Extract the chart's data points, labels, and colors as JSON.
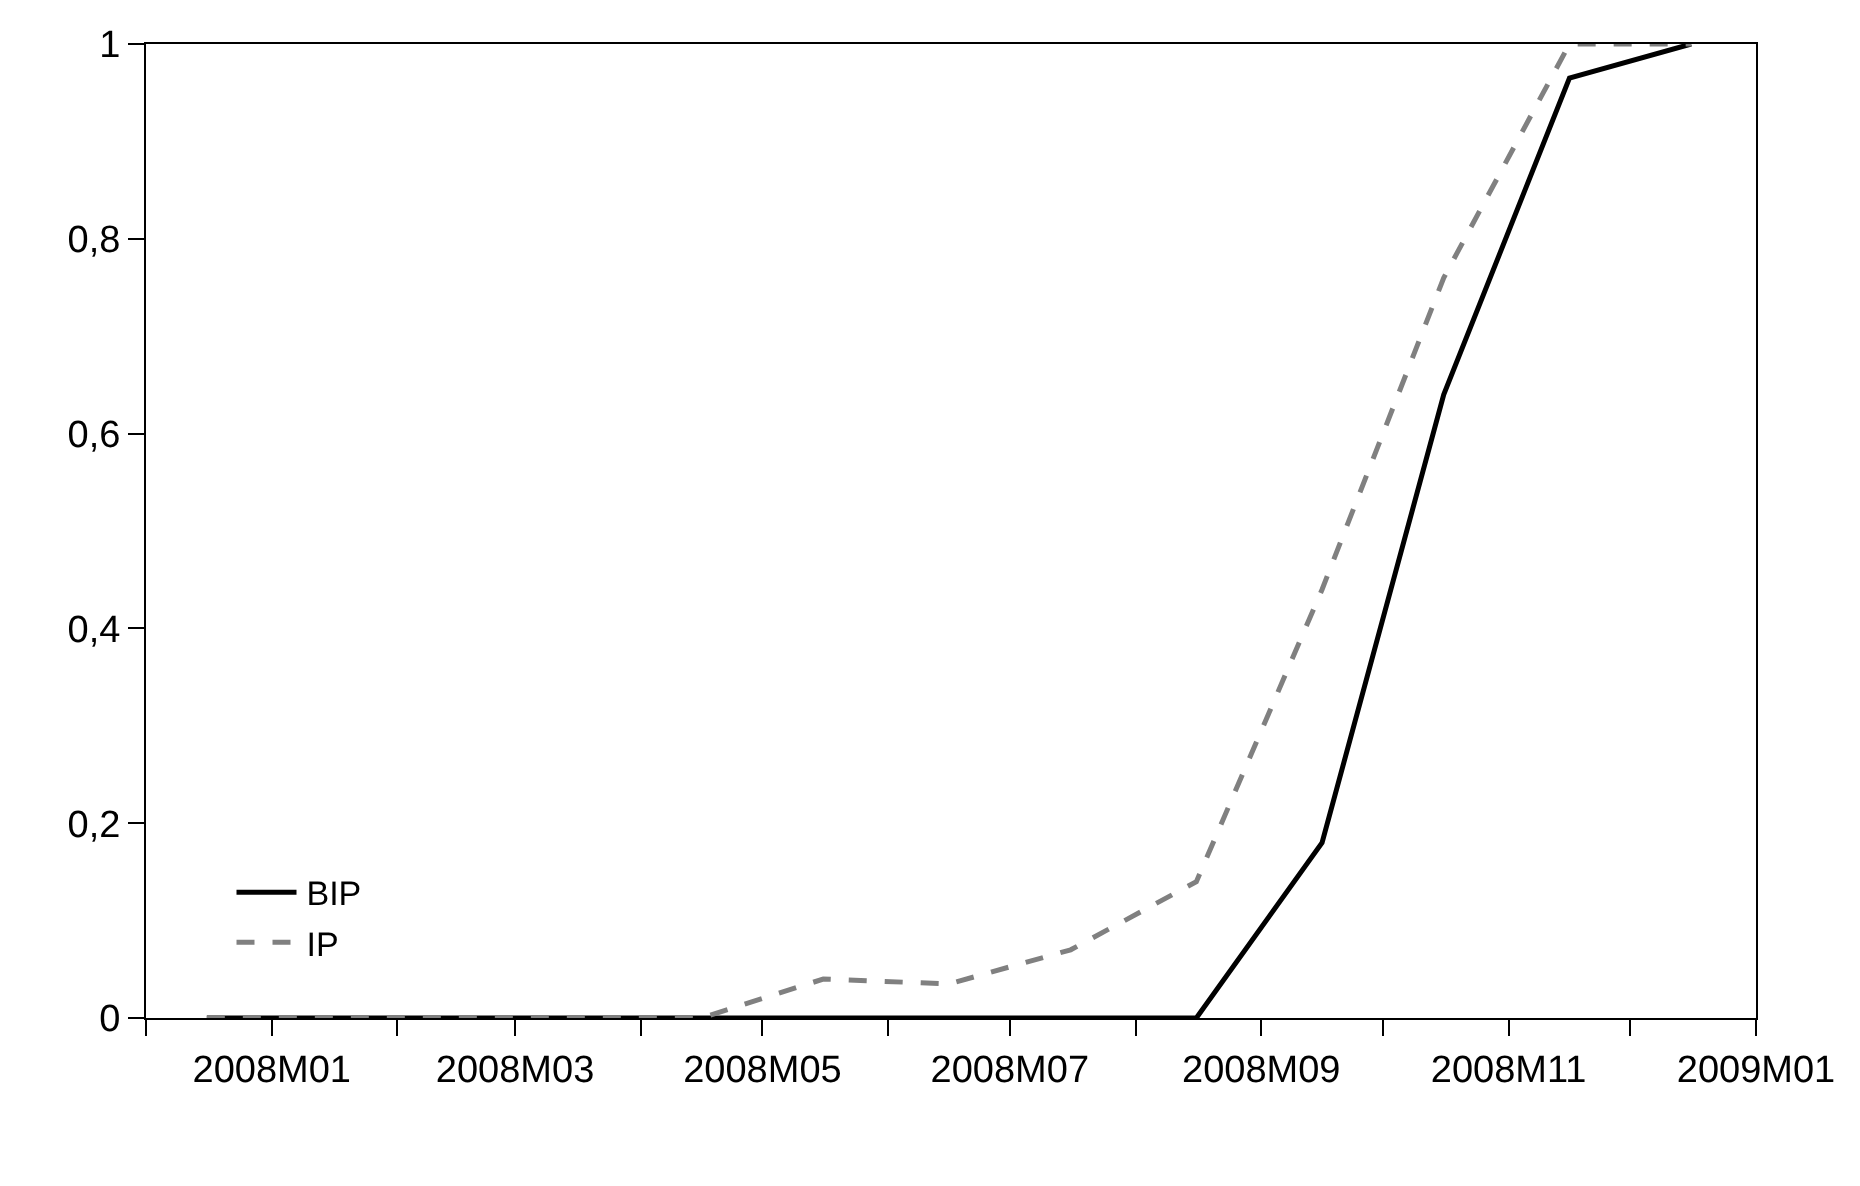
{
  "chart_data": {
    "type": "line",
    "x": [
      "2007-12-16",
      "2008-01-16",
      "2008-02-16",
      "2008-03-16",
      "2008-04-16",
      "2008-05-16",
      "2008-06-16",
      "2008-07-16",
      "2008-08-16",
      "2008-09-16",
      "2008-10-16",
      "2008-11-16",
      "2008-12-16"
    ],
    "series": [
      {
        "name": "BIP",
        "color": "#000000",
        "line_style": "solid",
        "values": [
          0,
          0,
          0,
          0,
          0,
          0,
          0,
          0,
          0,
          0.18,
          0.64,
          0.965,
          1
        ]
      },
      {
        "name": "IP",
        "color": "#808080",
        "line_style": "dashed",
        "values": [
          0,
          0,
          0,
          0,
          0,
          0.04,
          0.035,
          0.07,
          0.14,
          0.44,
          0.76,
          1,
          1
        ]
      }
    ],
    "xlim": [
      "2007-12-01",
      "2009-01-01"
    ],
    "xticks": [
      {
        "value": "2007-12-01",
        "label": null
      },
      {
        "value": "2008-01-01",
        "label": "2008M01"
      },
      {
        "value": "2008-02-01",
        "label": null
      },
      {
        "value": "2008-03-01",
        "label": "2008M03"
      },
      {
        "value": "2008-04-01",
        "label": null
      },
      {
        "value": "2008-05-01",
        "label": "2008M05"
      },
      {
        "value": "2008-06-01",
        "label": null
      },
      {
        "value": "2008-07-01",
        "label": "2008M07"
      },
      {
        "value": "2008-08-01",
        "label": null
      },
      {
        "value": "2008-09-01",
        "label": "2008M09"
      },
      {
        "value": "2008-10-01",
        "label": null
      },
      {
        "value": "2008-11-01",
        "label": "2008M11"
      },
      {
        "value": "2008-12-01",
        "label": null
      },
      {
        "value": "2009-01-01",
        "label": "2009M01"
      }
    ],
    "ylim": [
      0,
      1
    ],
    "yticks": [
      {
        "value": 0,
        "label": "0"
      },
      {
        "value": 0.2,
        "label": "0,2"
      },
      {
        "value": 0.4,
        "label": "0,4"
      },
      {
        "value": 0.6,
        "label": "0,6"
      },
      {
        "value": 0.8,
        "label": "0,8"
      },
      {
        "value": 1,
        "label": "1"
      }
    ],
    "grid": false,
    "legend": "bottom left",
    "marker": "none"
  }
}
